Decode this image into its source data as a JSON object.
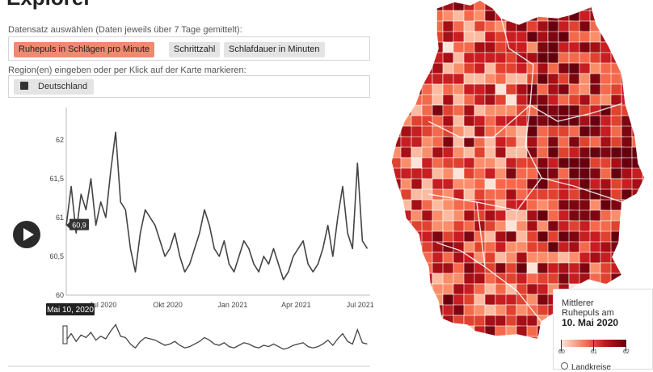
{
  "header": {
    "title": "Explorer"
  },
  "dataset": {
    "label": "Datensatz auswählen (Daten jeweils über 7 Tage gemittelt):",
    "options": [
      "Ruhepuls in Schlägen pro Minute",
      "Schrittzahl",
      "Schlafdauer in Minuten"
    ],
    "selected": "Ruhepuls in Schlägen pro Minute"
  },
  "regions": {
    "label": "Region(en) eingeben oder per Klick auf der Karte markieren:",
    "selected": [
      "Deutschland"
    ]
  },
  "colors": {
    "accent": "#ee8a6f",
    "line": "#444444",
    "map_low": "#fde3d8",
    "map_high": "#67000d"
  },
  "chart": {
    "tooltip_value": "60,9",
    "date_label": "Mai 10, 2020"
  },
  "chart_data": {
    "type": "line",
    "title": "",
    "y_ticks": [
      "60",
      "60,5",
      "61",
      "61,5",
      "62"
    ],
    "ylim": [
      60,
      62.5
    ],
    "x_ticks": [
      "Jul 2020",
      "Okt 2020",
      "Jan 2021",
      "Apr 2021",
      "Jul 2021"
    ],
    "xlim": [
      "2020-05-10",
      "2021-07-15"
    ],
    "series": [
      {
        "x": [
          "2020-05-10",
          "2020-05-17",
          "2020-05-24",
          "2020-05-31",
          "2020-06-07",
          "2020-06-14",
          "2020-06-21",
          "2020-06-28",
          "2020-07-05",
          "2020-07-12",
          "2020-07-19",
          "2020-07-26",
          "2020-08-02",
          "2020-08-09",
          "2020-08-16",
          "2020-08-23",
          "2020-08-30",
          "2020-09-06",
          "2020-09-13",
          "2020-09-20",
          "2020-09-27",
          "2020-10-04",
          "2020-10-11",
          "2020-10-18",
          "2020-10-25",
          "2020-11-01",
          "2020-11-08",
          "2020-11-15",
          "2020-11-22",
          "2020-11-29",
          "2020-12-06",
          "2020-12-13",
          "2020-12-20",
          "2020-12-27",
          "2021-01-03",
          "2021-01-10",
          "2021-01-17",
          "2021-01-24",
          "2021-01-31",
          "2021-02-07",
          "2021-02-14",
          "2021-02-21",
          "2021-02-28",
          "2021-03-07",
          "2021-03-14",
          "2021-03-21",
          "2021-03-28",
          "2021-04-04",
          "2021-04-11",
          "2021-04-18",
          "2021-04-25",
          "2021-05-02",
          "2021-05-09",
          "2021-05-16",
          "2021-05-23",
          "2021-05-30",
          "2021-06-06",
          "2021-06-13",
          "2021-06-20",
          "2021-06-27",
          "2021-07-04",
          "2021-07-11"
        ],
        "y": [
          60.9,
          61.4,
          60.8,
          61.3,
          61.1,
          61.5,
          60.9,
          61.2,
          61.0,
          61.6,
          62.1,
          61.2,
          61.1,
          60.6,
          60.3,
          60.8,
          61.1,
          61.0,
          60.9,
          60.7,
          60.5,
          60.6,
          60.8,
          60.5,
          60.3,
          60.4,
          60.6,
          60.8,
          61.1,
          60.9,
          60.6,
          60.5,
          60.7,
          60.4,
          60.3,
          60.5,
          60.7,
          60.6,
          60.4,
          60.3,
          60.5,
          60.4,
          60.6,
          60.4,
          60.2,
          60.3,
          60.5,
          60.6,
          60.7,
          60.4,
          60.3,
          60.4,
          60.6,
          60.9,
          60.5,
          61.0,
          61.4,
          60.8,
          60.6,
          61.7,
          60.7,
          60.6
        ]
      }
    ]
  },
  "legend": {
    "title_line1": "Mittlerer",
    "title_line2": "Ruhepuls am",
    "date": "10. Mai 2020",
    "ticks": [
      "60",
      "61",
      "62"
    ],
    "radio_label": "Landkreise"
  }
}
